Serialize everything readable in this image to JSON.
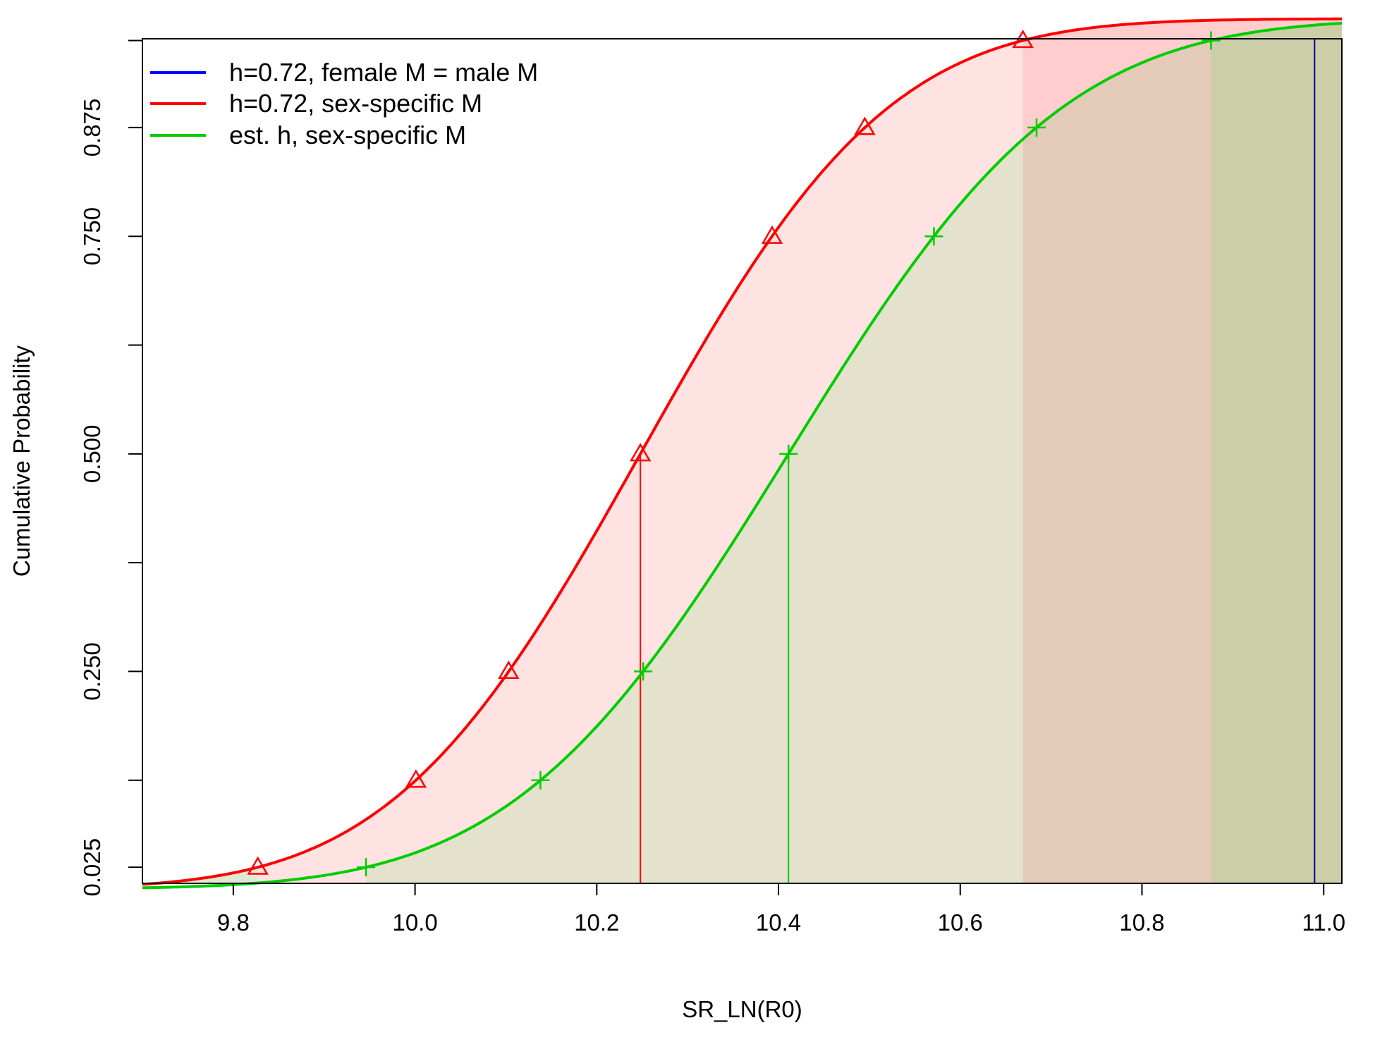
{
  "chart_data": {
    "type": "line",
    "title": "",
    "xlabel": "SR_LN(R0)",
    "ylabel": "Cumulative Probability",
    "xlim": [
      9.7,
      11.02
    ],
    "ylim": [
      0.0,
      1.0
    ],
    "x_ticks": [
      "9.8",
      "10.0",
      "10.2",
      "10.4",
      "10.6",
      "10.8",
      "11.0"
    ],
    "y_ticks": [
      "0.025",
      "0.250",
      "0.500",
      "0.750",
      "0.875"
    ],
    "grid": false,
    "legend_position": "top-left",
    "series": [
      {
        "name": "h=0.72, female M = male M",
        "color": "#0000ff",
        "distribution": "point",
        "value": 10.99
      },
      {
        "name": "h=0.72, sex-specific M",
        "color": "#ff0000",
        "marker": "triangle",
        "distribution": "normal",
        "mean": 10.248,
        "sd": 0.2148,
        "median": 10.248,
        "ci95": [
          9.827,
          10.669
        ],
        "quantile_points": [
          {
            "p": 0.025,
            "x": 9.827
          },
          {
            "p": 0.125,
            "x": 10.001
          },
          {
            "p": 0.25,
            "x": 10.103
          },
          {
            "p": 0.5,
            "x": 10.248
          },
          {
            "p": 0.75,
            "x": 10.393
          },
          {
            "p": 0.875,
            "x": 10.495
          },
          {
            "p": 0.975,
            "x": 10.669
          }
        ]
      },
      {
        "name": "est. h, sex-specific M",
        "color": "#00cd00",
        "marker": "plus",
        "distribution": "normal",
        "mean": 10.411,
        "sd": 0.2372,
        "median": 10.411,
        "ci95": [
          9.946,
          10.876
        ],
        "quantile_points": [
          {
            "p": 0.025,
            "x": 9.946
          },
          {
            "p": 0.125,
            "x": 10.138
          },
          {
            "p": 0.25,
            "x": 10.251
          },
          {
            "p": 0.5,
            "x": 10.411
          },
          {
            "p": 0.75,
            "x": 10.571
          },
          {
            "p": 0.875,
            "x": 10.684
          },
          {
            "p": 0.975,
            "x": 10.876
          }
        ]
      }
    ]
  }
}
